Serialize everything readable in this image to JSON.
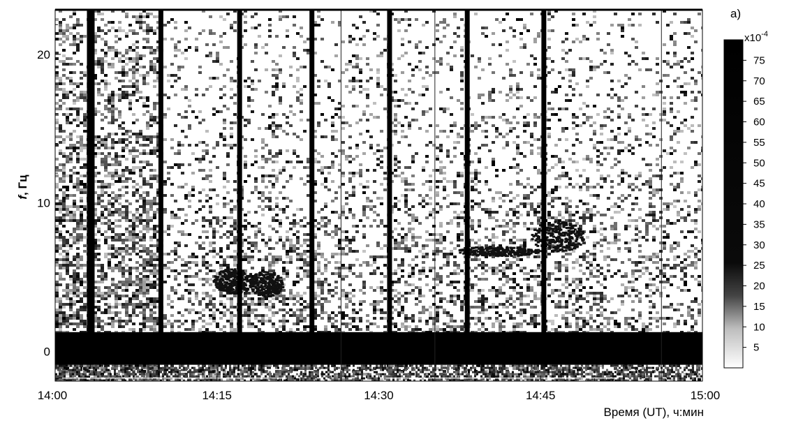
{
  "panel_label": "а)",
  "chart_data": {
    "type": "heatmap",
    "title": "",
    "xlabel": "Время (UT), ч:мин",
    "ylabel_italic": "f",
    "ylabel_rest": ", Гц",
    "x_range_minutes": [
      0,
      60
    ],
    "ylim": [
      -2,
      23
    ],
    "x_ticks": [
      {
        "value": 0,
        "label": "14:00"
      },
      {
        "value": 15,
        "label": "14:15"
      },
      {
        "value": 30,
        "label": "14:30"
      },
      {
        "value": 45,
        "label": "14:45"
      },
      {
        "value": 60,
        "label": "15:00"
      }
    ],
    "y_ticks": [
      {
        "value": 0,
        "label": "0"
      },
      {
        "value": 10,
        "label": "10"
      },
      {
        "value": 20,
        "label": "20"
      }
    ],
    "colorbar": {
      "multiplier": "x10",
      "exponent": "-4",
      "range": [
        0,
        80
      ],
      "ticks": [
        5,
        10,
        15,
        20,
        25,
        30,
        35,
        40,
        45,
        50,
        55,
        60,
        65,
        70,
        75
      ],
      "colormap": "grayscale, white (low) to black (high), saturating above ~25"
    },
    "vertical_stripes_minutes": [
      3.3,
      9.8,
      17.1,
      23.8,
      31.0,
      38.2,
      45.3
    ],
    "colors": {
      "low": "#ffffff",
      "high": "#000000"
    }
  }
}
